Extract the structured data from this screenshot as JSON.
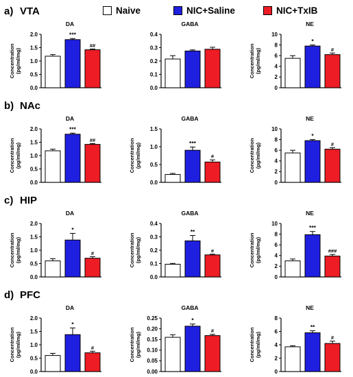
{
  "legend": {
    "items": [
      {
        "label": "Naive",
        "color": "#ffffff"
      },
      {
        "label": "NIC+Saline",
        "color": "#1f1fe0"
      },
      {
        "label": "NIC+TxIB",
        "color": "#ee1c24"
      }
    ]
  },
  "ylabel": "Concentration",
  "chart_data": [
    {
      "row": "VTA",
      "row_label": "a)",
      "panels": [
        {
          "type": "bar",
          "title": "DA",
          "ylabel": "Concentration\n(pg/ml/mg)",
          "ylim": [
            0,
            2.0
          ],
          "yticks": [
            0,
            0.5,
            1.0,
            1.5,
            2.0
          ],
          "tick_labels": [
            "0.0",
            "0.5",
            "1.0",
            "1.5",
            "2.0"
          ],
          "categories": [
            "Naive",
            "NIC+Saline",
            "NIC+TxIB"
          ],
          "values": [
            1.18,
            1.8,
            1.42
          ],
          "errors": [
            0.06,
            0.04,
            0.03
          ],
          "annotations": [
            "",
            "***",
            "##"
          ]
        },
        {
          "type": "bar",
          "title": "GABA",
          "ylabel": "",
          "ylim": [
            0,
            0.4
          ],
          "yticks": [
            0,
            0.1,
            0.2,
            0.3,
            0.4
          ],
          "tick_labels": [
            "0.0",
            "0.1",
            "0.2",
            "0.3",
            "0.4"
          ],
          "categories": [
            "Naive",
            "NIC+Saline",
            "NIC+TxIB"
          ],
          "values": [
            0.215,
            0.275,
            0.288
          ],
          "errors": [
            0.025,
            0.008,
            0.015
          ],
          "annotations": [
            "",
            "",
            ""
          ]
        },
        {
          "type": "bar",
          "title": "NE",
          "ylabel": "Concentration\n(pg/ml/mg)",
          "ylim": [
            0,
            10
          ],
          "yticks": [
            0,
            2,
            4,
            6,
            8,
            10
          ],
          "tick_labels": [
            "0",
            "2",
            "4",
            "6",
            "8",
            "10"
          ],
          "categories": [
            "Naive",
            "NIC+Saline",
            "NIC+TxIB"
          ],
          "values": [
            5.5,
            7.8,
            6.2
          ],
          "errors": [
            0.5,
            0.2,
            0.3
          ],
          "annotations": [
            "",
            "*",
            "#"
          ]
        }
      ]
    },
    {
      "row": "NAc",
      "row_label": "b)",
      "panels": [
        {
          "type": "bar",
          "title": "DA",
          "ylabel": "Concentration\n(pg/ml/mg)",
          "ylim": [
            0,
            2.0
          ],
          "yticks": [
            0,
            0.5,
            1.0,
            1.5,
            2.0
          ],
          "tick_labels": [
            "0.0",
            "0.5",
            "1.0",
            "1.5",
            "2.0"
          ],
          "categories": [
            "Naive",
            "NIC+Saline",
            "NIC+TxIB"
          ],
          "values": [
            1.18,
            1.8,
            1.42
          ],
          "errors": [
            0.06,
            0.04,
            0.03
          ],
          "annotations": [
            "",
            "***",
            "##"
          ]
        },
        {
          "type": "bar",
          "title": "GABA",
          "ylabel": "Concentration\n(pg/ml/mg)",
          "ylim": [
            0,
            1.5
          ],
          "yticks": [
            0,
            0.5,
            1.0,
            1.5
          ],
          "tick_labels": [
            "0.0",
            "0.5",
            "1.0",
            "1.5"
          ],
          "categories": [
            "Naive",
            "NIC+Saline",
            "NIC+TxIB"
          ],
          "values": [
            0.22,
            0.9,
            0.57
          ],
          "errors": [
            0.03,
            0.09,
            0.06
          ],
          "annotations": [
            "",
            "***",
            "#"
          ]
        },
        {
          "type": "bar",
          "title": "NE",
          "ylabel": "Concentration\n(pg/ml/mg)",
          "ylim": [
            0,
            10
          ],
          "yticks": [
            0,
            2,
            4,
            6,
            8,
            10
          ],
          "tick_labels": [
            "0",
            "2",
            "4",
            "6",
            "8",
            "10"
          ],
          "categories": [
            "Naive",
            "NIC+Saline",
            "NIC+TxIB"
          ],
          "values": [
            5.5,
            7.8,
            6.2
          ],
          "errors": [
            0.5,
            0.2,
            0.3
          ],
          "annotations": [
            "",
            "*",
            "#"
          ]
        }
      ]
    },
    {
      "row": "HIP",
      "row_label": "c)",
      "panels": [
        {
          "type": "bar",
          "title": "DA",
          "ylabel": "Concentration\n(pg/ml/mg)",
          "ylim": [
            0,
            2.0
          ],
          "yticks": [
            0,
            0.5,
            1.0,
            1.5,
            2.0
          ],
          "tick_labels": [
            "0.0",
            "0.5",
            "1.0",
            "1.5",
            "2.0"
          ],
          "categories": [
            "Naive",
            "NIC+Saline",
            "NIC+TxIB"
          ],
          "values": [
            0.6,
            1.38,
            0.7
          ],
          "errors": [
            0.08,
            0.25,
            0.06
          ],
          "annotations": [
            "",
            "*",
            "#"
          ]
        },
        {
          "type": "bar",
          "title": "GABA",
          "ylabel": "Concentration\n(pg/ml/mg)",
          "ylim": [
            0,
            0.4
          ],
          "yticks": [
            0,
            0.1,
            0.2,
            0.3,
            0.4
          ],
          "tick_labels": [
            "0.0",
            "0.1",
            "0.2",
            "0.3",
            "0.4"
          ],
          "categories": [
            "Naive",
            "NIC+Saline",
            "NIC+TxIB"
          ],
          "values": [
            0.095,
            0.27,
            0.165
          ],
          "errors": [
            0.006,
            0.04,
            0.005
          ],
          "annotations": [
            "",
            "**",
            "#"
          ]
        },
        {
          "type": "bar",
          "title": "NE",
          "ylabel": "Concentration\n(pg/ml/mg)",
          "ylim": [
            0,
            10
          ],
          "yticks": [
            0,
            2,
            4,
            6,
            8,
            10
          ],
          "tick_labels": [
            "0",
            "2",
            "4",
            "6",
            "8",
            "10"
          ],
          "categories": [
            "Naive",
            "NIC+Saline",
            "NIC+TxIB"
          ],
          "values": [
            3.0,
            7.9,
            3.9
          ],
          "errors": [
            0.35,
            0.6,
            0.3
          ],
          "annotations": [
            "",
            "***",
            "###"
          ]
        }
      ]
    },
    {
      "row": "PFC",
      "row_label": "d)",
      "panels": [
        {
          "type": "bar",
          "title": "DA",
          "ylabel": "Concentration\n(pg/ml/mg)",
          "ylim": [
            0,
            2.0
          ],
          "yticks": [
            0,
            0.5,
            1.0,
            1.5,
            2.0
          ],
          "tick_labels": [
            "0.0",
            "0.5",
            "1.0",
            "1.5",
            "2.0"
          ],
          "categories": [
            "Naive",
            "NIC+Saline",
            "NIC+TxIB"
          ],
          "values": [
            0.6,
            1.38,
            0.7
          ],
          "errors": [
            0.08,
            0.25,
            0.06
          ],
          "annotations": [
            "",
            "*",
            "#"
          ]
        },
        {
          "type": "bar",
          "title": "GABA",
          "ylabel": "Concentration\n(pg/ml/mg)",
          "ylim": [
            0,
            0.25
          ],
          "yticks": [
            0,
            0.05,
            0.1,
            0.15,
            0.2,
            0.25
          ],
          "tick_labels": [
            "0.00",
            "0.05",
            "0.10",
            "0.15",
            "0.20",
            "0.25"
          ],
          "categories": [
            "Naive",
            "NIC+Saline",
            "NIC+TxIB"
          ],
          "values": [
            0.16,
            0.212,
            0.168
          ],
          "errors": [
            0.012,
            0.01,
            0.006
          ],
          "annotations": [
            "",
            "*",
            "#"
          ]
        },
        {
          "type": "bar",
          "title": "NE",
          "ylabel": "Concentration\n(pg/ml/mg)",
          "ylim": [
            0,
            8
          ],
          "yticks": [
            0,
            2,
            4,
            6,
            8
          ],
          "tick_labels": [
            "0",
            "2",
            "4",
            "6",
            "8"
          ],
          "categories": [
            "Naive",
            "NIC+Saline",
            "NIC+TxIB"
          ],
          "values": [
            3.7,
            5.8,
            4.2
          ],
          "errors": [
            0.15,
            0.3,
            0.35
          ],
          "annotations": [
            "",
            "**",
            "#"
          ]
        }
      ]
    }
  ]
}
